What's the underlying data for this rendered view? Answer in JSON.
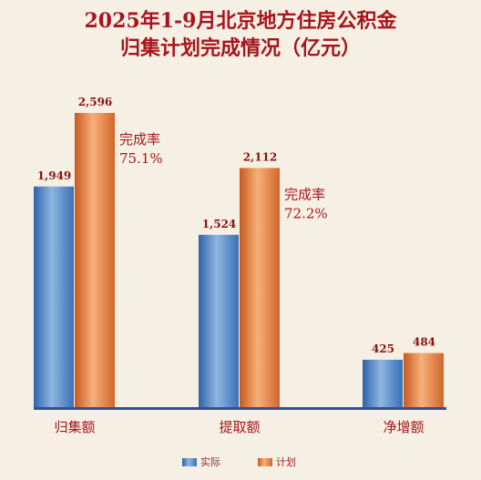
{
  "chart_data": {
    "type": "bar",
    "title_lines": [
      "2025年1-9月北京地方住房公积金",
      "归集计划完成情况（亿元）"
    ],
    "categories": [
      "归集额",
      "提取额",
      "净增额"
    ],
    "series": [
      {
        "name": "实际",
        "values": [
          1949,
          1524,
          425
        ],
        "labels": [
          "1,949",
          "1,524",
          "425"
        ],
        "color": "#4a82c4"
      },
      {
        "name": "计划",
        "values": [
          2596,
          2112,
          484
        ],
        "labels": [
          "2,596",
          "2,112",
          "484"
        ],
        "color": "#e0793a"
      }
    ],
    "annotations": [
      {
        "category": "归集额",
        "label": "完成率",
        "value": "75.1%"
      },
      {
        "category": "提取额",
        "label": "完成率",
        "value": "72.2%"
      }
    ],
    "ylim": [
      0,
      2850
    ],
    "grid": false,
    "legend_position": "bottom-center",
    "axis_color": "#3a4f93"
  }
}
